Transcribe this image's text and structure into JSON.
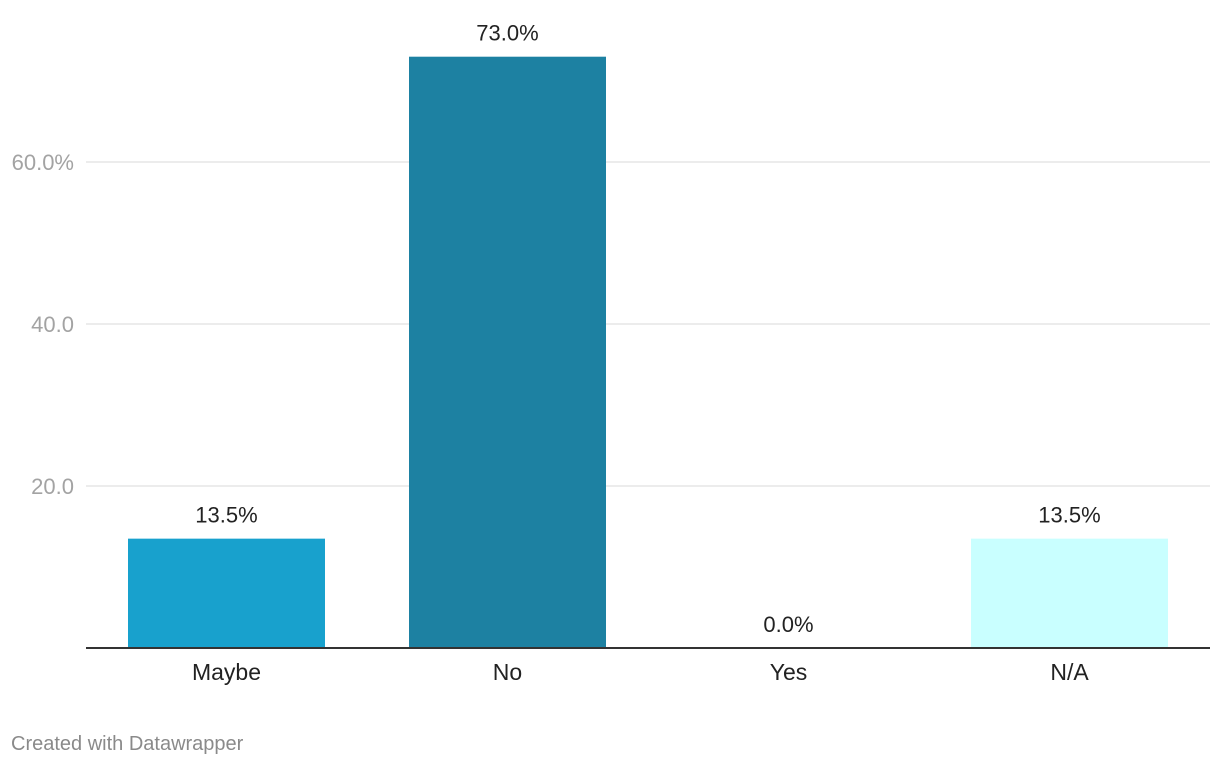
{
  "chart_data": {
    "type": "bar",
    "title": "",
    "xlabel": "",
    "ylabel": "",
    "categories": [
      "Maybe",
      "No",
      "Yes",
      "N/A"
    ],
    "values": [
      13.5,
      73.0,
      0.0,
      13.5
    ],
    "data_labels": [
      "13.5%",
      "73.0%",
      "0.0%",
      "13.5%"
    ],
    "colors": [
      "#18a1cd",
      "#1d81a2",
      "#15607a",
      "#c9ffff"
    ],
    "yticks": [
      20,
      40,
      60
    ],
    "ytick_labels": [
      "20.0",
      "40.0",
      "60.0%"
    ],
    "ylim": [
      0,
      80
    ],
    "grid": true,
    "legend": "none"
  },
  "footer": {
    "credit": "Created with Datawrapper"
  },
  "style": {
    "grid_color": "#e5e5e5",
    "baseline_color": "#333333"
  }
}
